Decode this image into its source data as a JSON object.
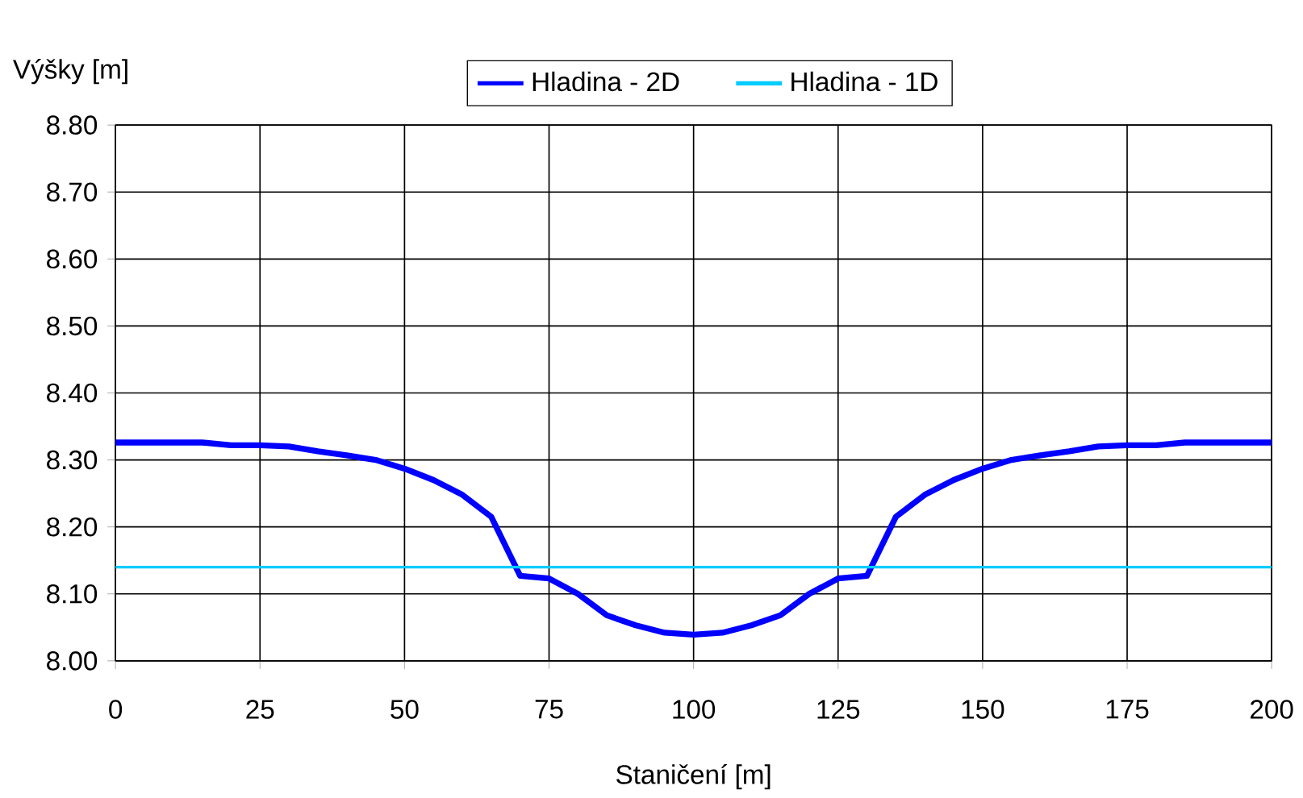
{
  "chart_data": {
    "type": "line",
    "xlabel": "Staničení [m]",
    "ylabel": "Výšky [m]",
    "x": [
      0,
      5,
      10,
      15,
      20,
      25,
      30,
      35,
      40,
      45,
      50,
      55,
      60,
      65,
      70,
      75,
      80,
      85,
      90,
      95,
      100,
      105,
      110,
      115,
      120,
      125,
      130,
      135,
      140,
      145,
      150,
      155,
      160,
      165,
      170,
      175,
      180,
      185,
      190,
      195,
      200
    ],
    "series": [
      {
        "name": "Hladina - 2D",
        "color": "#0000ff",
        "values": [
          8.326,
          8.326,
          8.326,
          8.326,
          8.322,
          8.322,
          8.32,
          8.313,
          8.307,
          8.3,
          8.287,
          8.27,
          8.248,
          8.215,
          8.127,
          8.123,
          8.1,
          8.068,
          8.053,
          8.042,
          8.039,
          8.042,
          8.053,
          8.068,
          8.1,
          8.123,
          8.127,
          8.215,
          8.248,
          8.27,
          8.287,
          8.3,
          8.307,
          8.313,
          8.32,
          8.322,
          8.322,
          8.326,
          8.326,
          8.326,
          8.326
        ]
      },
      {
        "name": "Hladina - 1D",
        "color": "#00ccff",
        "x": [
          0,
          200
        ],
        "values": [
          8.14,
          8.14
        ]
      }
    ],
    "xlim": [
      0,
      200
    ],
    "xticks": [
      0,
      25,
      50,
      75,
      100,
      125,
      150,
      175,
      200
    ],
    "ylim": [
      8.0,
      8.8
    ],
    "yticks": [
      {
        "value": 8.0,
        "label": "8.00"
      },
      {
        "value": 8.1,
        "label": "8.10"
      },
      {
        "value": 8.2,
        "label": "8.20"
      },
      {
        "value": 8.3,
        "label": "8.30"
      },
      {
        "value": 8.4,
        "label": "8.40"
      },
      {
        "value": 8.5,
        "label": "8.50"
      },
      {
        "value": 8.6,
        "label": "8.60"
      },
      {
        "value": 8.7,
        "label": "8.70"
      },
      {
        "value": 8.8,
        "label": "8.80"
      }
    ],
    "grid": true,
    "legend": "top",
    "marker": "none",
    "line_style": "solid"
  }
}
